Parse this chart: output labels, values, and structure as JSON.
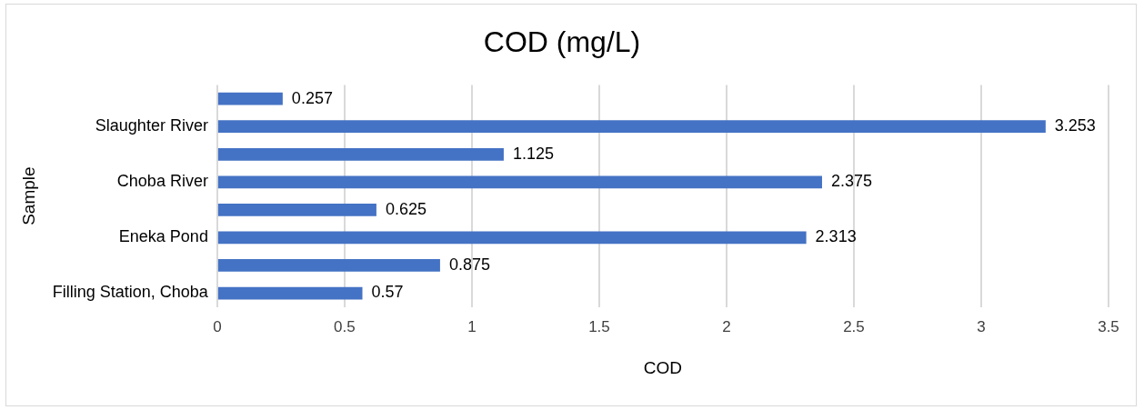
{
  "chart_data": {
    "type": "bar",
    "orientation": "horizontal",
    "title": "COD (mg/L)",
    "xlabel": "COD",
    "ylabel": "Sample",
    "categories": [
      null,
      "Slaughter River",
      null,
      "Choba River",
      null,
      "Eneka Pond",
      null,
      "Filling Station, Choba"
    ],
    "values": [
      0.257,
      3.253,
      1.125,
      2.375,
      0.625,
      2.313,
      0.875,
      0.57
    ],
    "color": "#4472c4",
    "xlim": [
      0,
      3.5
    ],
    "xticks": [
      0,
      0.5,
      1,
      1.5,
      2,
      2.5,
      3,
      3.5
    ],
    "grid": "x",
    "data_labels": true,
    "legend": false
  }
}
